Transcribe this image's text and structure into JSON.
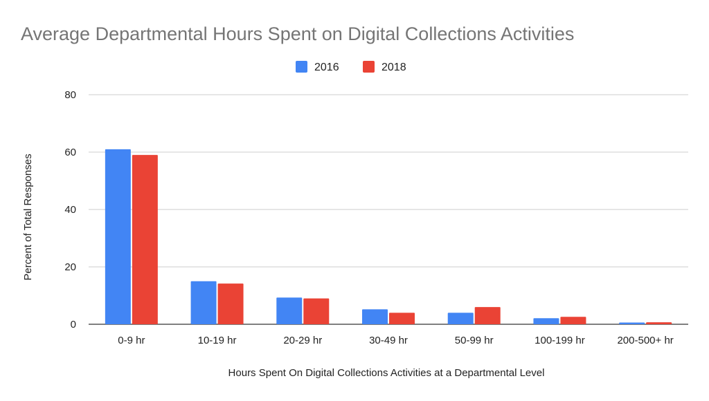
{
  "chart_data": {
    "type": "bar",
    "title": "Average Departmental Hours Spent on Digital Collections Activities",
    "xlabel": "Hours Spent On Digital Collections Activities at a Departmental Level",
    "ylabel": "Percent of Total Responses",
    "categories": [
      "0-9 hr",
      "10-19 hr",
      "20-29 hr",
      "30-49 hr",
      "50-99 hr",
      "100-199 hr",
      "200-500+ hr"
    ],
    "series": [
      {
        "name": "2016",
        "color": "#4285f4",
        "values": [
          61,
          15,
          9.3,
          5.2,
          4,
          2.1,
          0.6
        ]
      },
      {
        "name": "2018",
        "color": "#ea4335",
        "values": [
          59,
          14.2,
          9,
          4,
          6,
          2.6,
          0.7
        ]
      }
    ],
    "yticks": [
      "0",
      "20",
      "40",
      "60",
      "80"
    ],
    "ylim": [
      0,
      80
    ],
    "grid": true,
    "legend_position": "top-center"
  }
}
